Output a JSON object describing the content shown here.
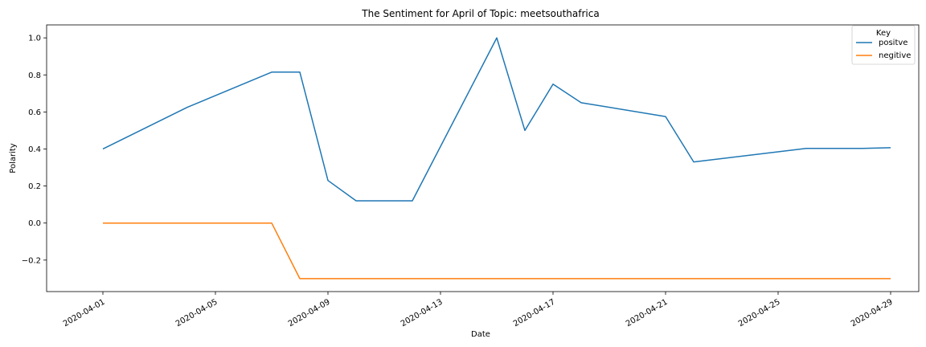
{
  "chart_data": {
    "type": "line",
    "title": "The Sentiment for April of Topic: meetsouthafrica",
    "xlabel": "Date",
    "ylabel": "Polarity",
    "legend_title": "Key",
    "legend_position": "top-right",
    "grid": false,
    "xlim": [
      "2020-03-30",
      "2020-04-30"
    ],
    "ylim": [
      -0.37,
      1.07
    ],
    "x_ticks": [
      "2020-04-01",
      "2020-04-05",
      "2020-04-09",
      "2020-04-13",
      "2020-04-17",
      "2020-04-21",
      "2020-04-25",
      "2020-04-29"
    ],
    "y_ticks": [
      -0.2,
      0.0,
      0.2,
      0.4,
      0.6,
      0.8,
      1.0
    ],
    "y_tick_labels": [
      "−0.2",
      "0.0",
      "0.2",
      "0.4",
      "0.6",
      "0.8",
      "1.0"
    ],
    "series": [
      {
        "name": "positve",
        "color": "#1f77b4",
        "points": [
          [
            "2020-04-01",
            0.4
          ],
          [
            "2020-04-04",
            0.625
          ],
          [
            "2020-04-07",
            0.815
          ],
          [
            "2020-04-08",
            0.815
          ],
          [
            "2020-04-09",
            0.23
          ],
          [
            "2020-04-10",
            0.12
          ],
          [
            "2020-04-12",
            0.12
          ],
          [
            "2020-04-15",
            1.0
          ],
          [
            "2020-04-16",
            0.5
          ],
          [
            "2020-04-17",
            0.75
          ],
          [
            "2020-04-18",
            0.65
          ],
          [
            "2020-04-21",
            0.575
          ],
          [
            "2020-04-22",
            0.33
          ],
          [
            "2020-04-26",
            0.403
          ],
          [
            "2020-04-28",
            0.403
          ],
          [
            "2020-04-29",
            0.407
          ]
        ]
      },
      {
        "name": "negitive",
        "color": "#ff7f0e",
        "points": [
          [
            "2020-04-01",
            0.0
          ],
          [
            "2020-04-07",
            0.0
          ],
          [
            "2020-04-08",
            -0.3
          ],
          [
            "2020-04-29",
            -0.3
          ]
        ]
      }
    ]
  }
}
